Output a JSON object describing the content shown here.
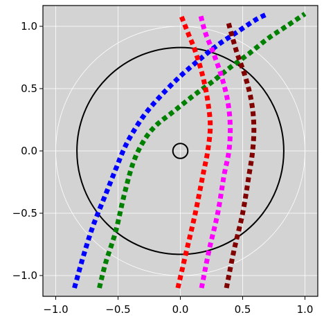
{
  "chart_data": {
    "type": "line",
    "title": "",
    "xlabel": "",
    "ylabel": "",
    "xlim": [
      -1.1,
      1.1
    ],
    "ylim": [
      -1.1,
      1.1
    ],
    "aspect": "equal",
    "grid": true,
    "legend": "none",
    "colors": {
      "axes_background": "#d3d3d3",
      "figure_background": "#ffffff",
      "grid": "#ffffff",
      "frame": "#000000"
    },
    "x_ticks": [
      {
        "value": -1.0,
        "label": "−1.0"
      },
      {
        "value": -0.5,
        "label": "−0.5"
      },
      {
        "value": 0.0,
        "label": "0.0"
      },
      {
        "value": 0.5,
        "label": "0.5"
      },
      {
        "value": 1.0,
        "label": "1.0"
      }
    ],
    "y_ticks": [
      {
        "value": -1.0,
        "label": "−1.0"
      },
      {
        "value": -0.5,
        "label": "−0.5"
      },
      {
        "value": 0.0,
        "label": "0.0"
      },
      {
        "value": 0.5,
        "label": "0.5"
      },
      {
        "value": 1.0,
        "label": "1.0"
      }
    ],
    "circles": [
      {
        "center": [
          0,
          0
        ],
        "radius": 1.0,
        "color": "#ffffff",
        "style": "solid",
        "role": "grid"
      },
      {
        "center": [
          0,
          0
        ],
        "radius": 0.83,
        "color": "#000000",
        "style": "solid"
      },
      {
        "center": [
          0,
          0
        ],
        "radius": 0.06,
        "color": "#000000",
        "style": "solid"
      }
    ],
    "series": [
      {
        "color": "#0000ff",
        "style": "dashed",
        "x": [
          -0.85,
          -0.78,
          -0.7,
          -0.6,
          -0.52,
          -0.45,
          -0.38,
          -0.28,
          -0.15,
          0.0,
          0.15,
          0.3,
          0.45,
          0.6,
          0.7
        ],
        "y": [
          -1.1,
          -0.85,
          -0.6,
          -0.35,
          -0.15,
          0.02,
          0.15,
          0.3,
          0.45,
          0.6,
          0.73,
          0.85,
          0.95,
          1.05,
          1.1
        ]
      },
      {
        "color": "#008000",
        "style": "dashed",
        "x": [
          -0.65,
          -0.6,
          -0.52,
          -0.45,
          -0.38,
          -0.3,
          -0.2,
          -0.05,
          0.1,
          0.25,
          0.4,
          0.55,
          0.7,
          0.85,
          1.0
        ],
        "y": [
          -1.1,
          -0.9,
          -0.65,
          -0.35,
          -0.1,
          0.07,
          0.2,
          0.32,
          0.44,
          0.55,
          0.67,
          0.78,
          0.9,
          1.0,
          1.1
        ]
      },
      {
        "color": "#ff0000",
        "style": "dashed",
        "x": [
          -0.02,
          0.05,
          0.12,
          0.18,
          0.22,
          0.24,
          0.22,
          0.18,
          0.12,
          0.06,
          0.0
        ],
        "y": [
          -1.1,
          -0.8,
          -0.5,
          -0.2,
          0.0,
          0.2,
          0.4,
          0.6,
          0.8,
          0.95,
          1.1
        ]
      },
      {
        "color": "#ff00ff",
        "style": "dashed",
        "x": [
          0.17,
          0.23,
          0.3,
          0.35,
          0.39,
          0.4,
          0.38,
          0.33,
          0.26,
          0.2,
          0.16
        ],
        "y": [
          -1.1,
          -0.8,
          -0.5,
          -0.2,
          0.0,
          0.2,
          0.4,
          0.6,
          0.8,
          0.95,
          1.1
        ]
      },
      {
        "color": "#800000",
        "style": "dashed",
        "x": [
          0.37,
          0.43,
          0.5,
          0.55,
          0.58,
          0.59,
          0.57,
          0.52,
          0.45,
          0.38
        ],
        "y": [
          -1.1,
          -0.8,
          -0.5,
          -0.2,
          0.0,
          0.2,
          0.4,
          0.6,
          0.8,
          1.05
        ]
      }
    ]
  }
}
